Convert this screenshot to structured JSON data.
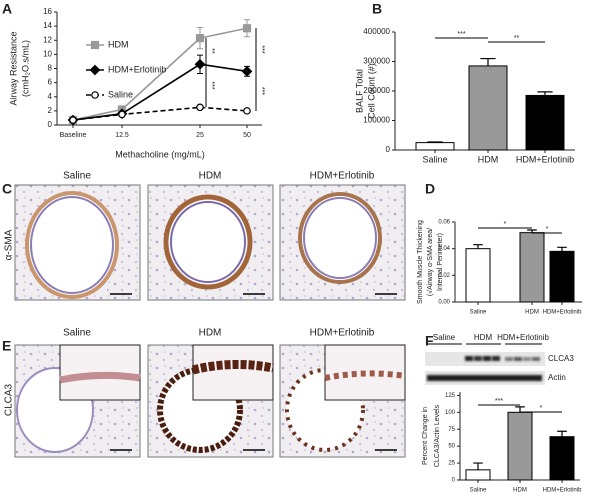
{
  "panel_labels": [
    "A",
    "B",
    "C",
    "D",
    "E",
    "F"
  ],
  "image_rows": [
    {
      "row_label": "α-SMA",
      "columns": [
        "Saline",
        "HDM",
        "HDM+Erlotinib"
      ]
    },
    {
      "row_label": "CLCA3",
      "columns": [
        "Saline",
        "HDM",
        "HDM+Erlotinib"
      ]
    }
  ],
  "blot": {
    "groups": [
      "Saline",
      "HDM",
      "HDM+Erlotinib"
    ],
    "bands": [
      "CLCA3",
      "Actin"
    ]
  },
  "chart_data": [
    {
      "type": "line",
      "y_label": [
        "Airway Resistance",
        "(cmH₂O.s/mL)"
      ],
      "x_label": "Methacholine (mg/mL)",
      "categories": [
        "Baseline",
        "12.5",
        "25",
        "50"
      ],
      "ylim": [
        0,
        16
      ],
      "yticks": [
        0,
        2,
        4,
        6,
        8,
        10,
        12,
        14,
        16
      ],
      "series": [
        {
          "name": "HDM",
          "color": "#999999",
          "marker": "square",
          "dashed": false,
          "values": [
            0.7,
            2.2,
            12.3,
            13.7
          ],
          "errors": [
            0.1,
            0.2,
            1.5,
            1.2
          ]
        },
        {
          "name": "HDM+Erlotinib",
          "color": "#000000",
          "marker": "diamond",
          "dashed": false,
          "values": [
            0.7,
            1.6,
            8.6,
            7.6
          ],
          "errors": [
            0.1,
            0.2,
            1.3,
            0.7
          ]
        },
        {
          "name": "Saline",
          "color": "#000000",
          "marker": "circle",
          "dashed": true,
          "values": [
            0.7,
            1.5,
            2.5,
            2.0
          ],
          "errors": [
            0.1,
            0.1,
            0.2,
            0.1
          ]
        }
      ],
      "annotations": [
        "**",
        "***",
        "***",
        "***"
      ]
    },
    {
      "type": "bar",
      "y_label": [
        "BALF Total",
        "Cell Count (#)"
      ],
      "categories": [
        "Saline",
        "HDM",
        "HDM+Erlotinib"
      ],
      "values": [
        25000,
        285000,
        185000
      ],
      "errors": [
        2000,
        25000,
        12000
      ],
      "colors": [
        "#ffffff",
        "#999999",
        "#000000"
      ],
      "ylim": [
        0,
        400000
      ],
      "yticks": [
        0,
        100000,
        200000,
        300000,
        400000
      ],
      "annotations": [
        "***",
        "**"
      ]
    },
    {
      "type": "bar",
      "y_label": [
        "Smooth Muscle Thickening",
        "(√Airway α-SMA area/",
        "Internal Perimeter)"
      ],
      "categories": [
        "Saline",
        "HDM",
        "HDM+Erlotinib"
      ],
      "values": [
        0.04,
        0.052,
        0.038
      ],
      "errors": [
        0.003,
        0.002,
        0.003
      ],
      "colors": [
        "#ffffff",
        "#999999",
        "#000000"
      ],
      "ylim": [
        0,
        0.06
      ],
      "yticks": [
        {
          "value": 0,
          "label": "0.00"
        },
        {
          "value": 0.02,
          "label": "0.02"
        },
        {
          "value": 0.04,
          "label": "0.04"
        },
        {
          "value": 0.06,
          "label": "0.06"
        }
      ],
      "annotations": [
        "*",
        "*"
      ]
    },
    {
      "type": "bar",
      "y_label": [
        "Percent Change in",
        "CLCA3/Actin Levels"
      ],
      "categories": [
        "Saline",
        "HDM",
        "HDM+Erlotinib"
      ],
      "values": [
        15,
        100,
        64
      ],
      "errors": [
        10,
        8,
        8
      ],
      "colors": [
        "#ffffff",
        "#999999",
        "#000000"
      ],
      "ylim": [
        0,
        130
      ],
      "yticks": [
        0,
        25,
        50,
        75,
        100,
        125
      ],
      "annotations": [
        "***",
        "*"
      ]
    }
  ]
}
